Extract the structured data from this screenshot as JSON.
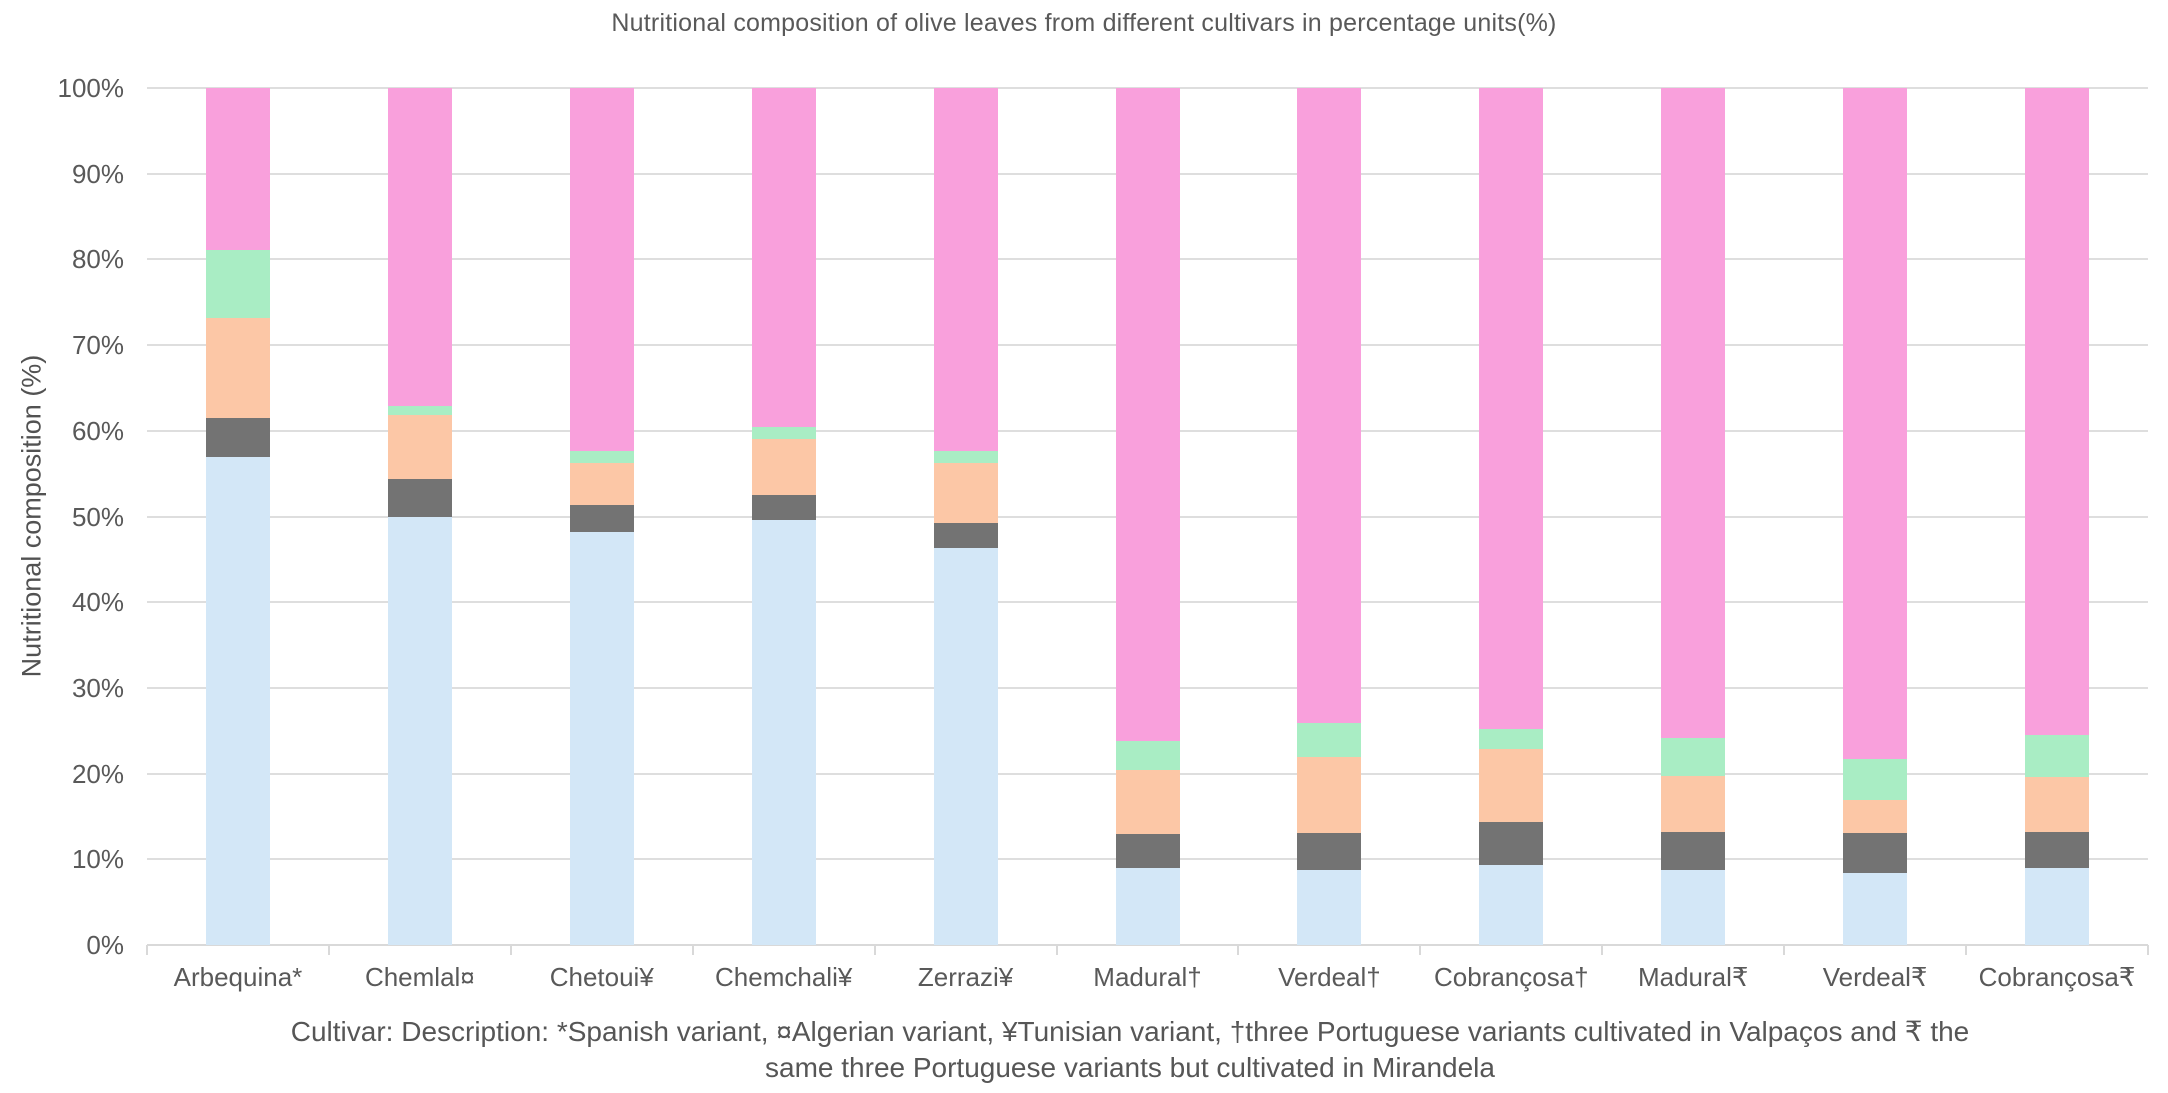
{
  "title": "Nutritional composition of olive leaves from different cultivars in percentage units(%)",
  "y_axis": {
    "title": "Nutritional composition (%)",
    "ticks": [
      "0%",
      "10%",
      "20%",
      "30%",
      "40%",
      "50%",
      "60%",
      "70%",
      "80%",
      "90%",
      "100%"
    ]
  },
  "caption": {
    "line1": "Cultivar: Description: *Spanish variant, ¤Algerian variant, ¥Tunisian variant, †three Portuguese variants cultivated in Valpaços and ₹ the",
    "line2": "same three Portuguese variants but cultivated in Mirandela"
  },
  "colors": {
    "gridline": "#dedede",
    "axis_line": "#d9d9d9",
    "text": "#595959",
    "background": "#ffffff"
  },
  "chart_data": {
    "type": "bar",
    "stacked": true,
    "title": "Nutritional composition of olive leaves from different cultivars in percentage units(%)",
    "xlabel": "",
    "ylabel": "Nutritional composition (%)",
    "ylim": [
      0,
      100
    ],
    "grid": true,
    "legend": false,
    "categories": [
      "Arbequina*",
      "Chemlal¤",
      "Chetoui¥",
      "Chemchali¥",
      "Zerrazi¥",
      "Madural†",
      "Verdeal†",
      "Cobrançosa†",
      "Madural₹",
      "Verdeal₹",
      "Cobrançosa₹"
    ],
    "series": [
      {
        "name": "segment-1-light-blue",
        "color": "#d3e7f7",
        "values": [
          57.0,
          50.0,
          48.2,
          49.6,
          46.3,
          9.0,
          8.8,
          9.3,
          8.8,
          8.4,
          9.0
        ]
      },
      {
        "name": "segment-2-dark-gray",
        "color": "#737373",
        "values": [
          4.5,
          4.4,
          3.1,
          2.9,
          2.9,
          4.0,
          4.3,
          5.0,
          4.4,
          4.7,
          4.2
        ]
      },
      {
        "name": "segment-3-peach",
        "color": "#fcc7a6",
        "values": [
          11.7,
          7.4,
          4.9,
          6.6,
          7.0,
          7.4,
          8.8,
          8.6,
          6.5,
          3.8,
          6.4
        ]
      },
      {
        "name": "segment-4-light-green",
        "color": "#a9edc4",
        "values": [
          7.9,
          1.1,
          1.4,
          1.3,
          1.4,
          3.4,
          4.0,
          2.3,
          4.4,
          4.8,
          4.9
        ]
      },
      {
        "name": "segment-5-pink",
        "color": "#f9a0dc",
        "values": [
          18.9,
          37.1,
          42.4,
          39.6,
          42.4,
          76.2,
          74.1,
          74.8,
          75.9,
          78.3,
          75.5
        ]
      }
    ]
  }
}
